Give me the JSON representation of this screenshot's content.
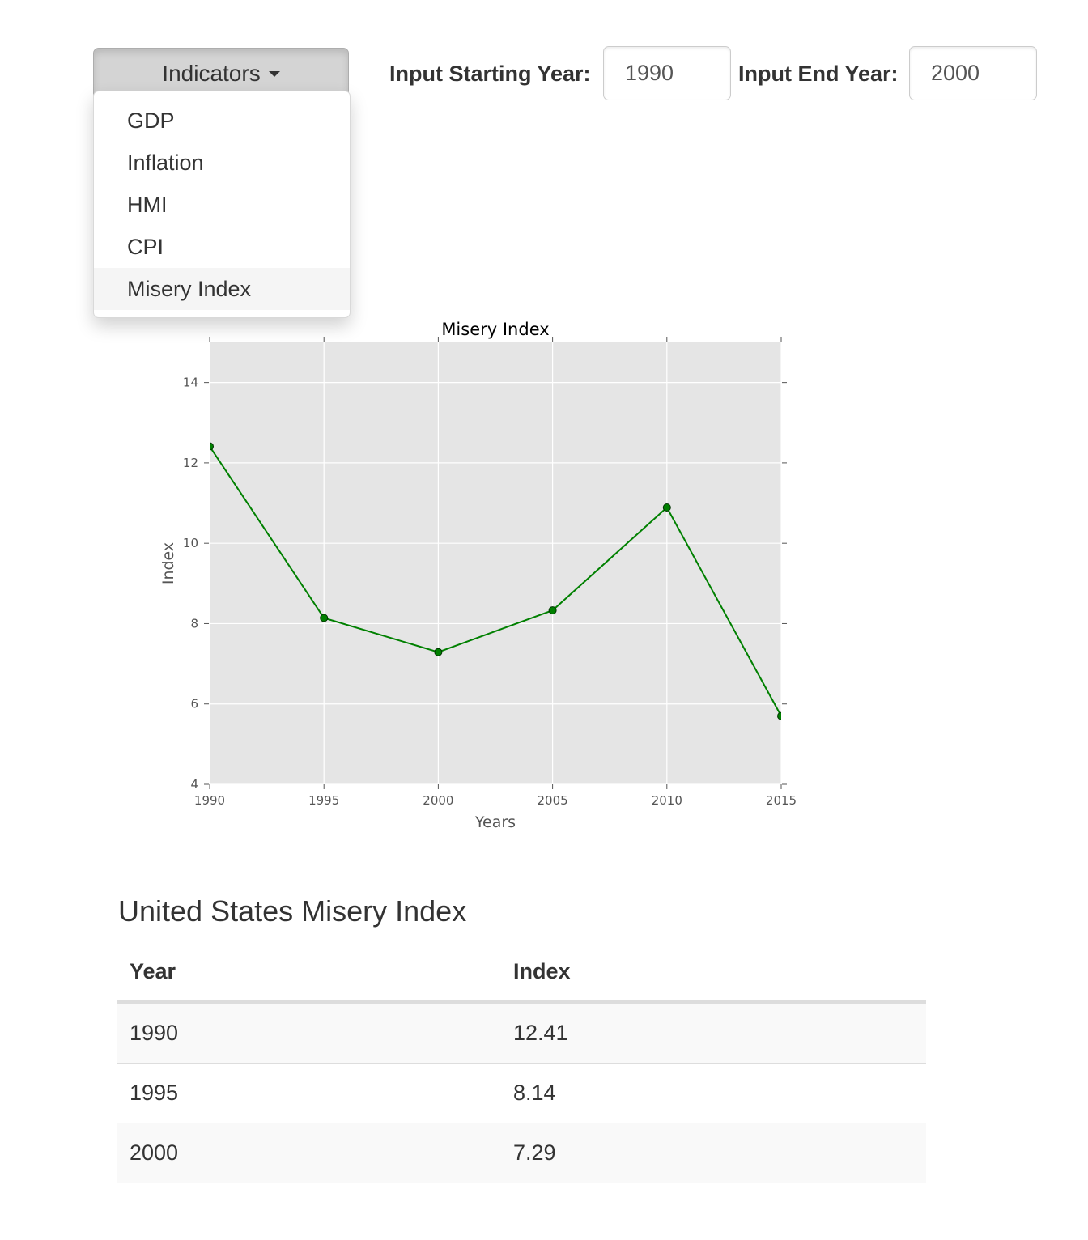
{
  "dropdown": {
    "button_label": "Indicators",
    "items": [
      {
        "label": "GDP",
        "active": false
      },
      {
        "label": "Inflation",
        "active": false
      },
      {
        "label": "HMI",
        "active": false
      },
      {
        "label": "CPI",
        "active": false
      },
      {
        "label": "Misery Index",
        "active": true
      }
    ]
  },
  "inputs": {
    "start_label": "Input Starting Year:",
    "start_value": "1990",
    "end_label": "Input End Year:",
    "end_value": "2000"
  },
  "chart_data": {
    "type": "line",
    "title": "Misery Index",
    "xlabel": "Years",
    "ylabel": "Index",
    "x": [
      1990,
      1995,
      2000,
      2005,
      2010,
      2015
    ],
    "series": [
      {
        "values": [
          12.41,
          8.14,
          7.29,
          8.33,
          10.89,
          5.7
        ],
        "color": "#008000"
      }
    ],
    "xlim": [
      1990,
      2015
    ],
    "ylim": [
      4,
      15
    ],
    "xticks": [
      1990,
      1995,
      2000,
      2005,
      2010,
      2015
    ],
    "yticks": [
      4,
      6,
      8,
      10,
      12,
      14
    ],
    "grid": true,
    "background": "#e5e5e5"
  },
  "table": {
    "title": "United States Misery Index",
    "headers": [
      "Year",
      "Index"
    ],
    "rows": [
      [
        "1990",
        "12.41"
      ],
      [
        "1995",
        "8.14"
      ],
      [
        "2000",
        "7.29"
      ]
    ]
  }
}
